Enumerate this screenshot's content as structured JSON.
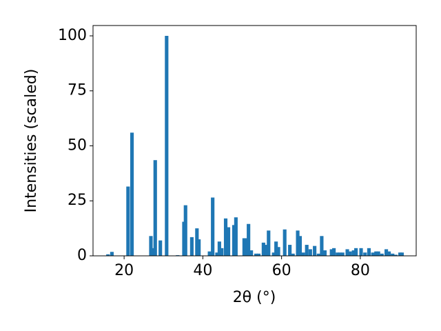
{
  "chart_data": {
    "type": "bar",
    "xlabel": "2θ (°)",
    "ylabel": "Intensities (scaled)",
    "color": "#1f77b4",
    "x": [
      15.9,
      16.9,
      21.0,
      22.0,
      26.8,
      27.4,
      27.9,
      29.2,
      30.8,
      33.6,
      35.2,
      35.6,
      37.2,
      38.5,
      39.0,
      41.7,
      42.5,
      43.6,
      44.2,
      44.8,
      45.8,
      46.5,
      47.9,
      48.4,
      50.5,
      50.9,
      51.6,
      52.3,
      53.5,
      54.2,
      55.4,
      56.1,
      56.7,
      58.0,
      58.6,
      59.2,
      60.8,
      62.1,
      62.9,
      64.1,
      64.7,
      65.5,
      66.4,
      67.3,
      68.4,
      69.4,
      70.2,
      71.0,
      72.7,
      73.3,
      74.2,
      74.8,
      75.5,
      76.7,
      77.4,
      78.3,
      78.9,
      80.2,
      81.2,
      82.2,
      83.2,
      84.0,
      84.6,
      85.5,
      86.6,
      87.3,
      88.2,
      89.0,
      90.1,
      90.6
    ],
    "values": [
      0.7,
      1.8,
      31.5,
      56,
      9,
      3.5,
      43.5,
      7,
      100,
      0.3,
      15.5,
      23,
      8.5,
      12.5,
      7.5,
      2,
      26.5,
      1.5,
      6.5,
      3.5,
      17,
      13,
      14,
      17.5,
      8,
      8,
      14.5,
      2.5,
      1,
      1,
      6,
      5,
      11.5,
      1.5,
      6.5,
      4,
      12,
      5,
      1,
      11.5,
      9,
      1.5,
      5,
      3,
      4.5,
      1,
      9,
      2.5,
      3,
      3.5,
      1.5,
      1.5,
      1.5,
      3,
      2,
      2.5,
      3.5,
      3.5,
      1.5,
      3.5,
      1.5,
      2,
      2,
      1,
      3,
      2,
      1,
      0.5,
      1.5,
      1.5
    ],
    "xlim": [
      12.1,
      94.2
    ],
    "ylim": [
      0,
      104.7
    ],
    "xticks": [
      20,
      40,
      60,
      80
    ],
    "yticks": [
      0,
      25,
      50,
      75,
      100
    ]
  }
}
